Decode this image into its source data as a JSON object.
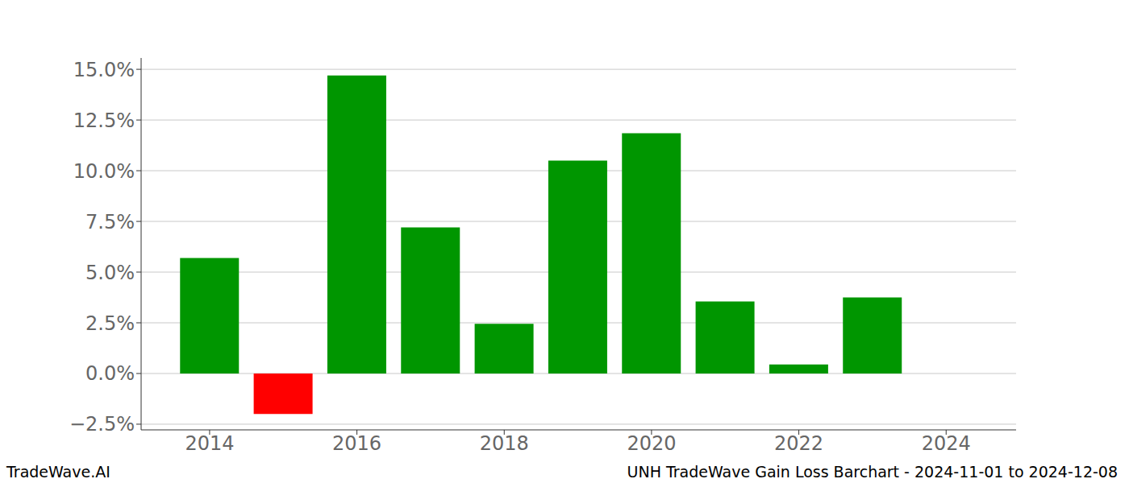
{
  "chart_data": {
    "type": "bar",
    "title": "UNH TradeWave Gain Loss Barchart - 2024-11-01 to 2024-12-08",
    "footer": "TradeWave.AI",
    "x": [
      2014,
      2015,
      2016,
      2017,
      2018,
      2019,
      2020,
      2021,
      2022,
      2023
    ],
    "values": [
      5.7,
      -2.0,
      14.7,
      7.2,
      2.45,
      10.5,
      11.85,
      3.55,
      0.45,
      3.75
    ],
    "colors": [
      "#009600",
      "#ff0000",
      "#009600",
      "#009600",
      "#009600",
      "#009600",
      "#009600",
      "#009600",
      "#009600",
      "#009600"
    ],
    "xlim": [
      2013.07,
      2024.95
    ],
    "xticks": [
      2014,
      2016,
      2018,
      2020,
      2022,
      2024
    ],
    "ylim": [
      -2.78,
      15.56
    ],
    "yticks": [
      {
        "value": -2.5,
        "label": "−2.5%"
      },
      {
        "value": 0,
        "label": "0.0%"
      },
      {
        "value": 2.5,
        "label": "2.5%"
      },
      {
        "value": 5,
        "label": "5.0%"
      },
      {
        "value": 7.5,
        "label": "7.5%"
      },
      {
        "value": 10,
        "label": "10.0%"
      },
      {
        "value": 12.5,
        "label": "12.5%"
      },
      {
        "value": 15,
        "label": "15.0%"
      }
    ],
    "grid": true
  }
}
